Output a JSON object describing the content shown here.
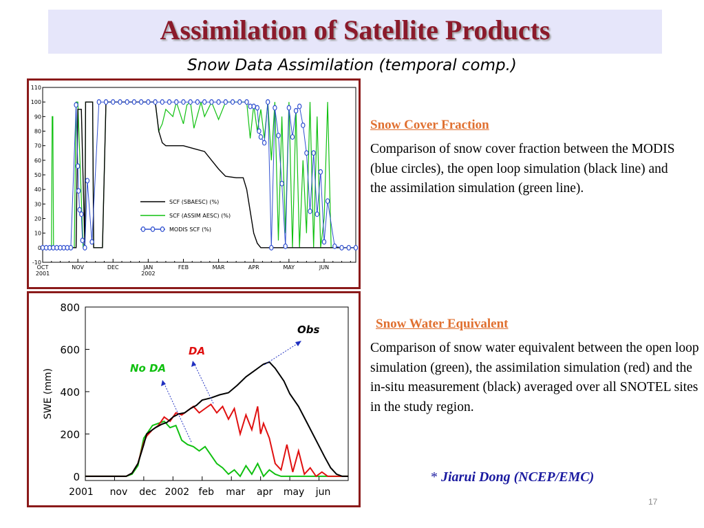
{
  "slide": {
    "title": "Assimilation of Satellite Products",
    "subtitle": "Snow Data Assimilation (temporal comp.)",
    "page_number": "17",
    "credit_star": "* ",
    "credit_name": "Jiarui Dong (NCEP/EMC)"
  },
  "scf_section": {
    "heading": "Snow Cover Fraction",
    "description": "Comparison of snow cover fraction between the MODIS (blue circles), the open loop simulation (black line) and the assimilation simulation (green line)."
  },
  "swe_section": {
    "heading": "Snow Water Equivalent",
    "description": "Comparison of snow water equivalent between the open loop simulation (green), the assimilation simulation (red) and the in-situ measurement (black) averaged over all SNOTEL sites in the study region."
  },
  "colors": {
    "title": "#8b1a2b",
    "title_band": "#e6e6fa",
    "panel_border": "#8b1a1a",
    "heading": "#e07030",
    "credit": "#1a1aa0",
    "modis": "#3050d0",
    "open_loop": "#000000",
    "assim": "#10c010",
    "swe_da": "#e01010",
    "annotation": "#2030c0"
  },
  "chart_data": [
    {
      "type": "line",
      "ylim": [
        -10,
        110
      ],
      "yticks": [
        "-10",
        "0",
        "10",
        "20",
        "30",
        "40",
        "50",
        "60",
        "70",
        "80",
        "90",
        "100",
        "110"
      ],
      "xticks": [
        "OCT\n2001",
        "NOV",
        "DEC",
        "JAN\n2002",
        "FEB",
        "MAR",
        "APR",
        "MAY",
        "JUN"
      ],
      "x_month_index": [
        0,
        1,
        2,
        3,
        4,
        5,
        6,
        7,
        8,
        8.9
      ],
      "legend": [
        "SCF (SBAESC) (%)",
        "SCF (ASSIM AESC) (%)",
        "MODIS SCF (%)"
      ],
      "legend_position": "center-right",
      "series": [
        {
          "name": "SCF (SBAESC) (%)",
          "color": "#000000",
          "x": [
            0,
            0.5,
            0.95,
            1.0,
            1.1,
            1.2,
            1.22,
            1.42,
            1.45,
            1.7,
            1.8,
            2.0,
            2.5,
            3.0,
            3.2,
            3.3,
            3.4,
            3.5,
            3.7,
            4.0,
            4.3,
            4.6,
            4.8,
            5.0,
            5.2,
            5.5,
            5.7,
            5.8,
            5.9,
            6.0,
            6.1,
            6.2,
            6.3,
            7.0,
            8.0,
            8.9
          ],
          "y": [
            0,
            0,
            0,
            95,
            95,
            0,
            100,
            100,
            0,
            0,
            100,
            100,
            100,
            100,
            100,
            80,
            72,
            70,
            70,
            70,
            68,
            66,
            60,
            54,
            49,
            48,
            48,
            40,
            25,
            10,
            3,
            0,
            0,
            0,
            0,
            0
          ]
        },
        {
          "name": "SCF (ASSIM AESC) (%)",
          "color": "#10c010",
          "x": [
            0,
            0.25,
            0.27,
            0.29,
            0.31,
            0.9,
            0.95,
            1.0,
            1.15,
            1.2,
            1.22,
            1.42,
            1.45,
            1.7,
            1.8,
            2.0,
            2.5,
            3.0,
            3.2,
            3.3,
            3.4,
            3.5,
            3.7,
            3.8,
            4.0,
            4.1,
            4.2,
            4.3,
            4.5,
            4.6,
            4.8,
            5.0,
            5.2,
            5.5,
            5.6,
            5.7,
            5.8,
            5.9,
            6.0,
            6.1,
            6.2,
            6.3,
            6.4,
            6.5,
            6.6,
            6.7,
            6.8,
            6.9,
            7.0,
            7.1,
            7.2,
            7.3,
            7.4,
            7.5,
            7.6,
            7.7,
            7.8,
            7.9,
            8.0,
            8.1,
            8.2,
            8.3,
            8.9
          ],
          "y": [
            0,
            0,
            90,
            90,
            0,
            0,
            100,
            100,
            0,
            0,
            100,
            100,
            0,
            0,
            100,
            100,
            100,
            100,
            100,
            80,
            85,
            95,
            90,
            100,
            85,
            98,
            100,
            82,
            100,
            90,
            100,
            88,
            100,
            100,
            100,
            100,
            100,
            75,
            98,
            80,
            95,
            75,
            100,
            60,
            100,
            5,
            90,
            10,
            100,
            0,
            95,
            0,
            60,
            10,
            100,
            0,
            90,
            0,
            20,
            100,
            0,
            0,
            0
          ]
        },
        {
          "name": "MODIS SCF (%)",
          "color": "#3050d0",
          "x": [
            0,
            0.1,
            0.2,
            0.3,
            0.4,
            0.5,
            0.6,
            0.7,
            0.8,
            0.95,
            1.0,
            1.02,
            1.05,
            1.1,
            1.13,
            1.2,
            1.27,
            1.4,
            1.6,
            1.8,
            2.0,
            2.2,
            2.4,
            2.6,
            2.8,
            3.0,
            3.2,
            3.4,
            3.6,
            3.8,
            4.0,
            4.2,
            4.4,
            4.6,
            4.8,
            5.0,
            5.2,
            5.4,
            5.6,
            5.8,
            5.9,
            6.0,
            6.1,
            6.15,
            6.2,
            6.3,
            6.4,
            6.5,
            6.6,
            6.7,
            6.8,
            6.9,
            7.0,
            7.1,
            7.2,
            7.3,
            7.4,
            7.5,
            7.6,
            7.7,
            7.8,
            7.9,
            8.0,
            8.1,
            8.3,
            8.5,
            8.7,
            8.9
          ],
          "y": [
            0,
            0,
            0,
            0,
            0,
            0,
            0,
            0,
            0,
            98,
            56,
            39,
            26,
            23,
            5,
            0,
            46,
            4,
            100,
            100,
            100,
            100,
            100,
            100,
            100,
            100,
            100,
            100,
            100,
            100,
            100,
            100,
            100,
            100,
            100,
            100,
            100,
            100,
            100,
            100,
            97,
            97,
            96,
            80,
            76,
            72,
            100,
            0,
            96,
            77,
            44,
            1,
            96,
            76,
            94,
            97,
            84,
            65,
            25,
            65,
            23,
            52,
            4,
            32,
            1,
            0,
            0,
            0
          ]
        }
      ]
    },
    {
      "type": "line",
      "ylabel": "SWE (mm)",
      "ylim": [
        -20,
        800
      ],
      "yticks": [
        "0",
        "200",
        "400",
        "600",
        "800"
      ],
      "xticks": [
        "2001",
        "nov",
        "dec",
        "2002",
        "feb",
        "mar",
        "apr",
        "may",
        "jun"
      ],
      "x_month_index": [
        0,
        1,
        2,
        3,
        4,
        5,
        6,
        7,
        8,
        9
      ],
      "annotations": [
        "Obs",
        "DA",
        "No DA"
      ],
      "series": [
        {
          "color": "#000000",
          "x": [
            0,
            1.4,
            1.6,
            1.8,
            2.0,
            2.1,
            2.2,
            2.4,
            2.6,
            2.8,
            3.0,
            3.2,
            3.4,
            3.6,
            3.8,
            4.0,
            4.3,
            4.6,
            4.9,
            5.2,
            5.5,
            5.8,
            6.0,
            6.1,
            6.3,
            6.5,
            6.8,
            7.0,
            7.3,
            7.6,
            7.9,
            8.2,
            8.4,
            8.6,
            8.8,
            9.0
          ],
          "y": [
            0,
            0,
            15,
            60,
            150,
            200,
            210,
            230,
            245,
            255,
            280,
            295,
            300,
            320,
            335,
            360,
            370,
            385,
            395,
            430,
            470,
            500,
            520,
            530,
            540,
            510,
            450,
            390,
            330,
            250,
            170,
            90,
            40,
            10,
            0,
            0
          ]
        },
        {
          "color": "#e01010",
          "x": [
            0,
            1.4,
            1.6,
            1.8,
            2.0,
            2.1,
            2.3,
            2.5,
            2.7,
            2.9,
            3.1,
            3.3,
            3.5,
            3.7,
            3.9,
            4.1,
            4.3,
            4.5,
            4.7,
            4.9,
            5.1,
            5.3,
            5.5,
            5.7,
            5.9,
            6.0,
            6.1,
            6.3,
            6.5,
            6.7,
            6.9,
            7.1,
            7.3,
            7.5,
            7.7,
            7.9,
            8.1,
            8.3,
            8.5,
            9.0
          ],
          "y": [
            0,
            0,
            15,
            60,
            160,
            190,
            220,
            240,
            280,
            260,
            300,
            290,
            310,
            330,
            300,
            320,
            340,
            300,
            330,
            270,
            320,
            200,
            290,
            220,
            330,
            200,
            250,
            180,
            60,
            30,
            150,
            20,
            120,
            10,
            40,
            0,
            20,
            0,
            0,
            0
          ]
        },
        {
          "color": "#10c010",
          "x": [
            0,
            1.4,
            1.6,
            1.8,
            2.0,
            2.1,
            2.3,
            2.5,
            2.7,
            2.9,
            3.1,
            3.3,
            3.5,
            3.7,
            3.9,
            4.1,
            4.3,
            4.5,
            4.7,
            4.9,
            5.1,
            5.3,
            5.5,
            5.7,
            5.9,
            6.1,
            6.3,
            6.5,
            6.7,
            6.9,
            7.1,
            7.3,
            7.5,
            9.0
          ],
          "y": [
            0,
            0,
            10,
            50,
            180,
            200,
            240,
            250,
            260,
            230,
            240,
            170,
            150,
            140,
            120,
            140,
            100,
            60,
            40,
            10,
            30,
            0,
            50,
            10,
            60,
            0,
            30,
            10,
            0,
            0,
            0,
            0,
            0,
            0
          ]
        }
      ]
    }
  ]
}
